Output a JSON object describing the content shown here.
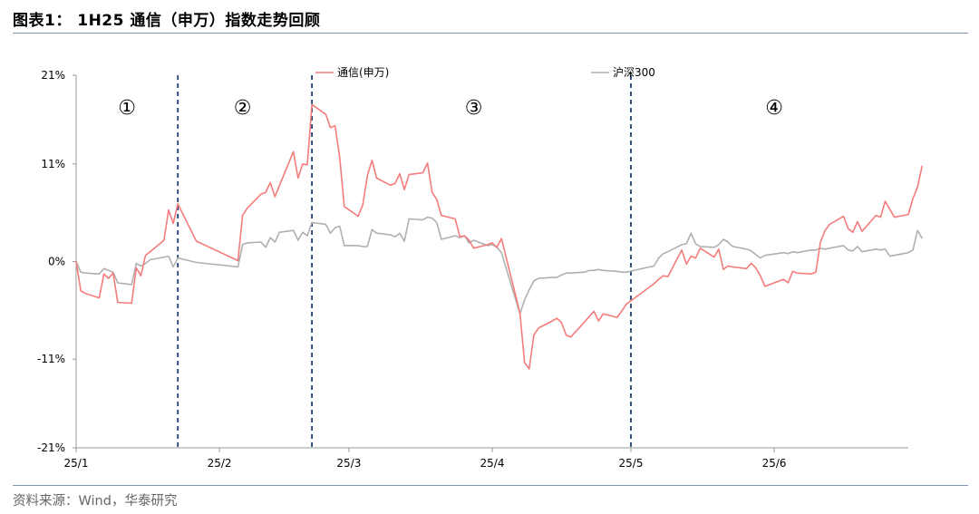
{
  "title": "图表1： 1H25 通信（申万）指数走势回顾",
  "source": "资料来源：Wind，华泰研究",
  "colors": {
    "telecom": "#f47c7c",
    "csi300": "#b0b0b0",
    "divider": "#1f3f77",
    "axis": "#999999"
  },
  "chart_data": {
    "type": "line",
    "ylim": [
      -21,
      21
    ],
    "y_ticks": [
      -21,
      -11,
      0,
      11,
      21
    ],
    "y_tick_labels": [
      "-21%",
      "-11%",
      "0%",
      "11%",
      "21%"
    ],
    "x_range": [
      "2025-01-01",
      "2025-06-30"
    ],
    "x_ticks": [
      {
        "label": "25/1",
        "date": "2025-01-01"
      },
      {
        "label": "25/2",
        "date": "2025-02-01"
      },
      {
        "label": "25/3",
        "date": "2025-03-01"
      },
      {
        "label": "25/4",
        "date": "2025-04-01"
      },
      {
        "label": "25/5",
        "date": "2025-05-01"
      },
      {
        "label": "25/6",
        "date": "2025-06-01"
      }
    ],
    "dividers": [
      "2025-01-23",
      "2025-02-21",
      "2025-05-01"
    ],
    "phase_labels": [
      {
        "label": "①",
        "date": "2025-01-12"
      },
      {
        "label": "②",
        "date": "2025-02-06"
      },
      {
        "label": "③",
        "date": "2025-03-28"
      },
      {
        "label": "④",
        "date": "2025-06-01"
      }
    ],
    "series": [
      {
        "name": "通信(申万)",
        "points": [
          [
            "2025-01-01",
            0
          ],
          [
            "2025-01-02",
            -3.3
          ],
          [
            "2025-01-03",
            -3.6
          ],
          [
            "2025-01-06",
            -4.1
          ],
          [
            "2025-01-07",
            -1.4
          ],
          [
            "2025-01-08",
            -1.9
          ],
          [
            "2025-01-09",
            -1.3
          ],
          [
            "2025-01-10",
            -4.6
          ],
          [
            "2025-01-13",
            -4.7
          ],
          [
            "2025-01-14",
            -0.7
          ],
          [
            "2025-01-15",
            -1.6
          ],
          [
            "2025-01-16",
            0.7
          ],
          [
            "2025-01-17",
            1.1
          ],
          [
            "2025-01-20",
            2.4
          ],
          [
            "2025-01-21",
            5.8
          ],
          [
            "2025-01-22",
            4.3
          ],
          [
            "2025-01-23",
            6.5
          ],
          [
            "2025-01-27",
            2.3
          ],
          [
            "2025-02-05",
            0.1
          ],
          [
            "2025-02-06",
            5.2
          ],
          [
            "2025-02-07",
            6.0
          ],
          [
            "2025-02-10",
            7.6
          ],
          [
            "2025-02-11",
            7.8
          ],
          [
            "2025-02-12",
            8.9
          ],
          [
            "2025-02-13",
            7.3
          ],
          [
            "2025-02-14",
            8.6
          ],
          [
            "2025-02-17",
            12.4
          ],
          [
            "2025-02-18",
            9.4
          ],
          [
            "2025-02-19",
            11.0
          ],
          [
            "2025-02-20",
            10.9
          ],
          [
            "2025-02-21",
            17.7
          ],
          [
            "2025-02-24",
            16.6
          ],
          [
            "2025-02-25",
            15.1
          ],
          [
            "2025-02-26",
            15.3
          ],
          [
            "2025-02-27",
            11.8
          ],
          [
            "2025-02-28",
            6.2
          ],
          [
            "2025-03-03",
            5.1
          ],
          [
            "2025-03-04",
            6.4
          ],
          [
            "2025-03-05",
            9.7
          ],
          [
            "2025-03-06",
            11.4
          ],
          [
            "2025-03-07",
            9.4
          ],
          [
            "2025-03-10",
            8.6
          ],
          [
            "2025-03-11",
            8.8
          ],
          [
            "2025-03-12",
            9.9
          ],
          [
            "2025-03-13",
            8.1
          ],
          [
            "2025-03-14",
            9.8
          ],
          [
            "2025-03-17",
            10.0
          ],
          [
            "2025-03-18",
            11.1
          ],
          [
            "2025-03-19",
            7.8
          ],
          [
            "2025-03-20",
            7.0
          ],
          [
            "2025-03-21",
            5.2
          ],
          [
            "2025-03-24",
            4.8
          ],
          [
            "2025-03-25",
            2.8
          ],
          [
            "2025-03-26",
            2.9
          ],
          [
            "2025-03-27",
            2.4
          ],
          [
            "2025-03-28",
            1.5
          ],
          [
            "2025-03-31",
            1.9
          ],
          [
            "2025-04-01",
            2.1
          ],
          [
            "2025-04-02",
            1.6
          ],
          [
            "2025-04-03",
            2.6
          ],
          [
            "2025-04-07",
            -5.8
          ],
          [
            "2025-04-08",
            -11.4
          ],
          [
            "2025-04-09",
            -12.1
          ],
          [
            "2025-04-10",
            -8.3
          ],
          [
            "2025-04-11",
            -7.5
          ],
          [
            "2025-04-14",
            -6.7
          ],
          [
            "2025-04-15",
            -6.4
          ],
          [
            "2025-04-16",
            -6.9
          ],
          [
            "2025-04-17",
            -8.3
          ],
          [
            "2025-04-18",
            -8.5
          ],
          [
            "2025-04-21",
            -6.8
          ],
          [
            "2025-04-22",
            -6.2
          ],
          [
            "2025-04-23",
            -5.6
          ],
          [
            "2025-04-24",
            -6.7
          ],
          [
            "2025-04-25",
            -5.9
          ],
          [
            "2025-04-28",
            -6.3
          ],
          [
            "2025-04-29",
            -5.6
          ],
          [
            "2025-04-30",
            -4.8
          ],
          [
            "2025-05-06",
            -2.5
          ],
          [
            "2025-05-07",
            -2.0
          ],
          [
            "2025-05-08",
            -1.6
          ],
          [
            "2025-05-09",
            -1.7
          ],
          [
            "2025-05-12",
            1.3
          ],
          [
            "2025-05-13",
            -0.3
          ],
          [
            "2025-05-14",
            0.6
          ],
          [
            "2025-05-15",
            0.4
          ],
          [
            "2025-05-16",
            1.5
          ],
          [
            "2025-05-19",
            0.5
          ],
          [
            "2025-05-20",
            1.4
          ],
          [
            "2025-05-21",
            -0.9
          ],
          [
            "2025-05-22",
            -0.5
          ],
          [
            "2025-05-23",
            -0.6
          ],
          [
            "2025-05-26",
            -0.8
          ],
          [
            "2025-05-27",
            -0.2
          ],
          [
            "2025-05-28",
            -0.7
          ],
          [
            "2025-05-29",
            -1.6
          ],
          [
            "2025-05-30",
            -2.8
          ],
          [
            "2025-06-03",
            -2.0
          ],
          [
            "2025-06-04",
            -2.4
          ],
          [
            "2025-06-05",
            -1.1
          ],
          [
            "2025-06-06",
            -1.3
          ],
          [
            "2025-06-09",
            -1.4
          ],
          [
            "2025-06-10",
            -1.2
          ],
          [
            "2025-06-11",
            2.2
          ],
          [
            "2025-06-12",
            3.5
          ],
          [
            "2025-06-13",
            4.2
          ],
          [
            "2025-06-16",
            5.1
          ],
          [
            "2025-06-17",
            3.7
          ],
          [
            "2025-06-18",
            3.3
          ],
          [
            "2025-06-19",
            4.5
          ],
          [
            "2025-06-20",
            3.4
          ],
          [
            "2025-06-23",
            5.2
          ],
          [
            "2025-06-24",
            5.0
          ],
          [
            "2025-06-25",
            6.8
          ],
          [
            "2025-06-26",
            5.9
          ],
          [
            "2025-06-27",
            5.0
          ],
          [
            "2025-06-30",
            5.3
          ],
          [
            "2025-07-01",
            7.1
          ],
          [
            "2025-07-02",
            8.4
          ],
          [
            "2025-07-03",
            10.8
          ]
        ]
      },
      {
        "name": "沪深300",
        "points": [
          [
            "2025-01-01",
            0
          ],
          [
            "2025-01-02",
            -1.2
          ],
          [
            "2025-01-03",
            -1.3
          ],
          [
            "2025-01-06",
            -1.4
          ],
          [
            "2025-01-07",
            -0.8
          ],
          [
            "2025-01-08",
            -1.0
          ],
          [
            "2025-01-09",
            -1.2
          ],
          [
            "2025-01-10",
            -2.4
          ],
          [
            "2025-01-13",
            -2.6
          ],
          [
            "2025-01-14",
            -0.2
          ],
          [
            "2025-01-15",
            -0.5
          ],
          [
            "2025-01-16",
            -0.2
          ],
          [
            "2025-01-17",
            0.2
          ],
          [
            "2025-01-20",
            0.5
          ],
          [
            "2025-01-21",
            0.6
          ],
          [
            "2025-01-22",
            -0.6
          ],
          [
            "2025-01-23",
            0.4
          ],
          [
            "2025-01-27",
            -0.1
          ],
          [
            "2025-02-05",
            -0.6
          ],
          [
            "2025-02-06",
            1.9
          ],
          [
            "2025-02-07",
            2.1
          ],
          [
            "2025-02-10",
            2.2
          ],
          [
            "2025-02-11",
            1.6
          ],
          [
            "2025-02-12",
            2.7
          ],
          [
            "2025-02-13",
            2.2
          ],
          [
            "2025-02-14",
            3.3
          ],
          [
            "2025-02-17",
            3.5
          ],
          [
            "2025-02-18",
            2.4
          ],
          [
            "2025-02-19",
            3.3
          ],
          [
            "2025-02-20",
            2.9
          ],
          [
            "2025-02-21",
            4.4
          ],
          [
            "2025-02-24",
            4.2
          ],
          [
            "2025-02-25",
            3.2
          ],
          [
            "2025-02-26",
            3.8
          ],
          [
            "2025-02-27",
            4.0
          ],
          [
            "2025-02-28",
            1.8
          ],
          [
            "2025-03-03",
            1.8
          ],
          [
            "2025-03-04",
            1.7
          ],
          [
            "2025-03-05",
            1.7
          ],
          [
            "2025-03-06",
            3.6
          ],
          [
            "2025-03-07",
            3.2
          ],
          [
            "2025-03-10",
            3.0
          ],
          [
            "2025-03-11",
            2.8
          ],
          [
            "2025-03-12",
            3.2
          ],
          [
            "2025-03-13",
            2.3
          ],
          [
            "2025-03-14",
            4.8
          ],
          [
            "2025-03-17",
            4.7
          ],
          [
            "2025-03-18",
            5.0
          ],
          [
            "2025-03-19",
            4.9
          ],
          [
            "2025-03-20",
            4.4
          ],
          [
            "2025-03-21",
            2.5
          ],
          [
            "2025-03-24",
            2.9
          ],
          [
            "2025-03-25",
            2.7
          ],
          [
            "2025-03-26",
            2.9
          ],
          [
            "2025-03-27",
            2.1
          ],
          [
            "2025-03-28",
            2.4
          ],
          [
            "2025-03-31",
            1.8
          ],
          [
            "2025-04-01",
            1.9
          ],
          [
            "2025-04-02",
            1.6
          ],
          [
            "2025-04-03",
            1.0
          ],
          [
            "2025-04-07",
            -5.9
          ],
          [
            "2025-04-08",
            -4.3
          ],
          [
            "2025-04-09",
            -3.2
          ],
          [
            "2025-04-10",
            -2.2
          ],
          [
            "2025-04-11",
            -1.9
          ],
          [
            "2025-04-14",
            -1.8
          ],
          [
            "2025-04-15",
            -1.8
          ],
          [
            "2025-04-16",
            -1.5
          ],
          [
            "2025-04-17",
            -1.3
          ],
          [
            "2025-04-18",
            -1.3
          ],
          [
            "2025-04-21",
            -1.2
          ],
          [
            "2025-04-22",
            -1.0
          ],
          [
            "2025-04-23",
            -1.0
          ],
          [
            "2025-04-24",
            -0.9
          ],
          [
            "2025-04-25",
            -1.0
          ],
          [
            "2025-04-28",
            -1.1
          ],
          [
            "2025-04-29",
            -1.2
          ],
          [
            "2025-04-30",
            -1.2
          ],
          [
            "2025-05-06",
            -0.5
          ],
          [
            "2025-05-07",
            0.4
          ],
          [
            "2025-05-08",
            0.9
          ],
          [
            "2025-05-09",
            1.1
          ],
          [
            "2025-05-12",
            1.9
          ],
          [
            "2025-05-13",
            2.0
          ],
          [
            "2025-05-14",
            3.2
          ],
          [
            "2025-05-15",
            2.0
          ],
          [
            "2025-05-16",
            1.7
          ],
          [
            "2025-05-19",
            1.6
          ],
          [
            "2025-05-20",
            1.9
          ],
          [
            "2025-05-21",
            2.5
          ],
          [
            "2025-05-22",
            2.2
          ],
          [
            "2025-05-23",
            1.7
          ],
          [
            "2025-05-26",
            1.4
          ],
          [
            "2025-05-27",
            1.2
          ],
          [
            "2025-05-28",
            0.8
          ],
          [
            "2025-05-29",
            0.4
          ],
          [
            "2025-05-30",
            0.7
          ],
          [
            "2025-06-03",
            1.0
          ],
          [
            "2025-06-04",
            0.9
          ],
          [
            "2025-06-05",
            1.1
          ],
          [
            "2025-06-06",
            1.0
          ],
          [
            "2025-06-09",
            1.3
          ],
          [
            "2025-06-10",
            1.3
          ],
          [
            "2025-06-11",
            1.5
          ],
          [
            "2025-06-12",
            1.4
          ],
          [
            "2025-06-13",
            1.5
          ],
          [
            "2025-06-16",
            1.8
          ],
          [
            "2025-06-17",
            1.3
          ],
          [
            "2025-06-18",
            1.2
          ],
          [
            "2025-06-19",
            1.7
          ],
          [
            "2025-06-20",
            1.1
          ],
          [
            "2025-06-23",
            1.4
          ],
          [
            "2025-06-24",
            1.3
          ],
          [
            "2025-06-25",
            1.4
          ],
          [
            "2025-06-26",
            0.6
          ],
          [
            "2025-06-27",
            0.7
          ],
          [
            "2025-06-30",
            1.0
          ],
          [
            "2025-07-01",
            1.3
          ],
          [
            "2025-07-02",
            3.5
          ],
          [
            "2025-07-03",
            2.6
          ]
        ]
      }
    ]
  }
}
